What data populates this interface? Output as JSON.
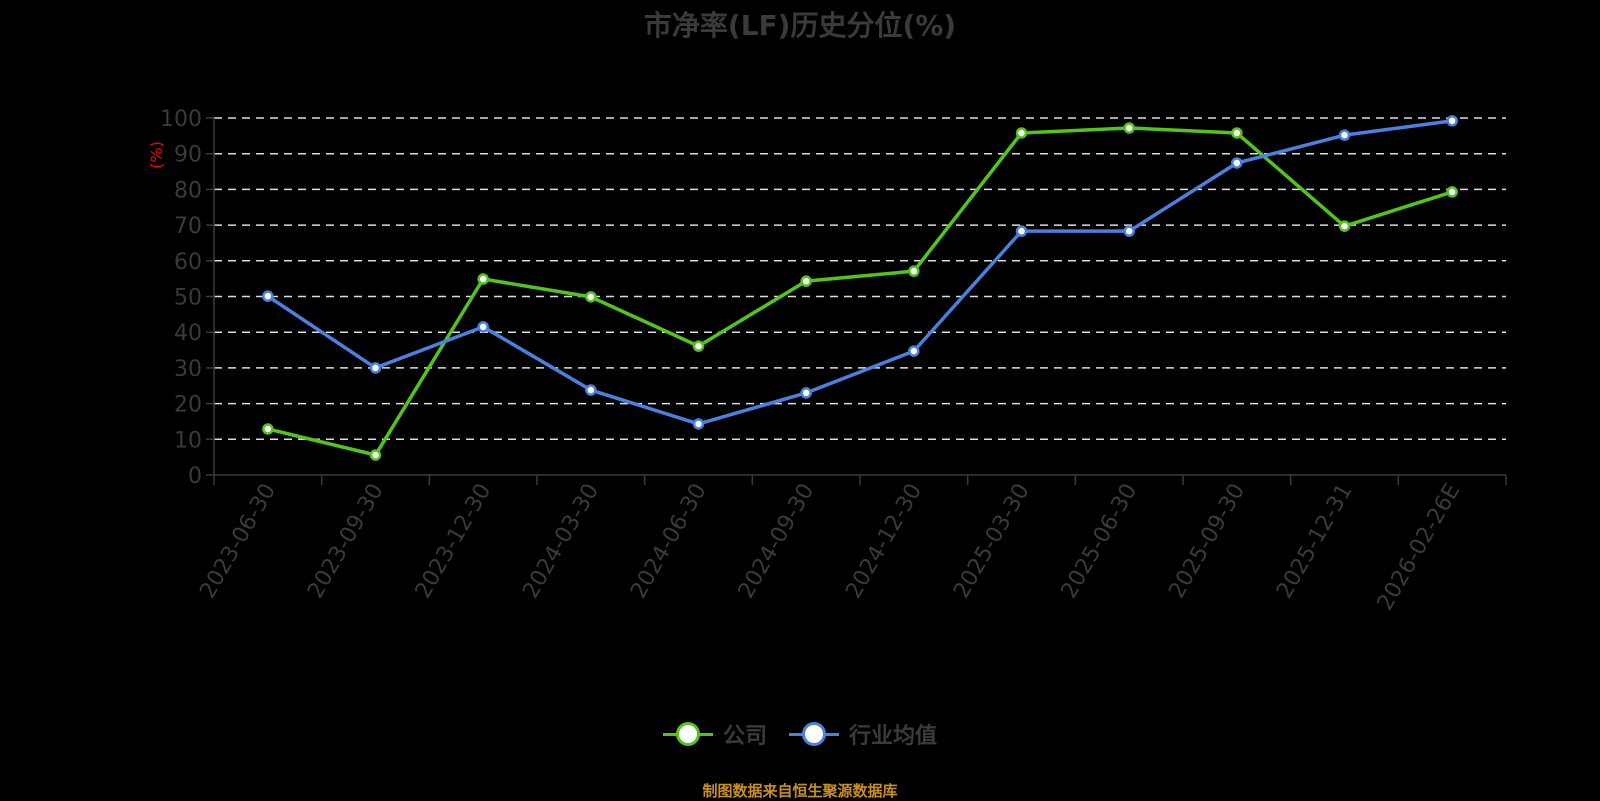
{
  "title": "市净率(LF)历史分位(%)",
  "source": "制图数据来自恒生聚源数据库",
  "chart_data": {
    "type": "line",
    "title": "市净率(LF)历史分位(%)",
    "xlabel": "",
    "ylabel": "(%)",
    "ylim": [
      0,
      100
    ],
    "yticks": [
      0,
      10,
      20,
      30,
      40,
      50,
      60,
      70,
      80,
      90,
      100
    ],
    "grid": true,
    "legend_position": "bottom",
    "categories": [
      "2023-06-30",
      "2023-09-30",
      "2023-12-30",
      "2024-03-30",
      "2024-06-30",
      "2024-09-30",
      "2024-12-30",
      "2025-03-30",
      "2025-06-30",
      "2025-09-30",
      "2025-12-31",
      "2026-02-26E"
    ],
    "series": [
      {
        "name": "公司",
        "color": "#52c41a",
        "values": [
          12.9,
          5.6,
          54.9,
          49.9,
          36.1,
          54.3,
          57.1,
          95.8,
          97.2,
          95.8,
          69.7,
          79.3
        ]
      },
      {
        "name": "行业均值",
        "color": "#4a80e0",
        "values": [
          50.1,
          30.0,
          41.5,
          23.8,
          14.3,
          23.0,
          34.7,
          68.3,
          68.3,
          87.4,
          95.2,
          99.2
        ]
      }
    ]
  },
  "colors": {
    "background": "#000000",
    "axis": "#3a3a3a",
    "text": "#3a3a3a",
    "grid": "#dddddd",
    "ylabel": "#ff0000",
    "source": "#c8901e"
  }
}
